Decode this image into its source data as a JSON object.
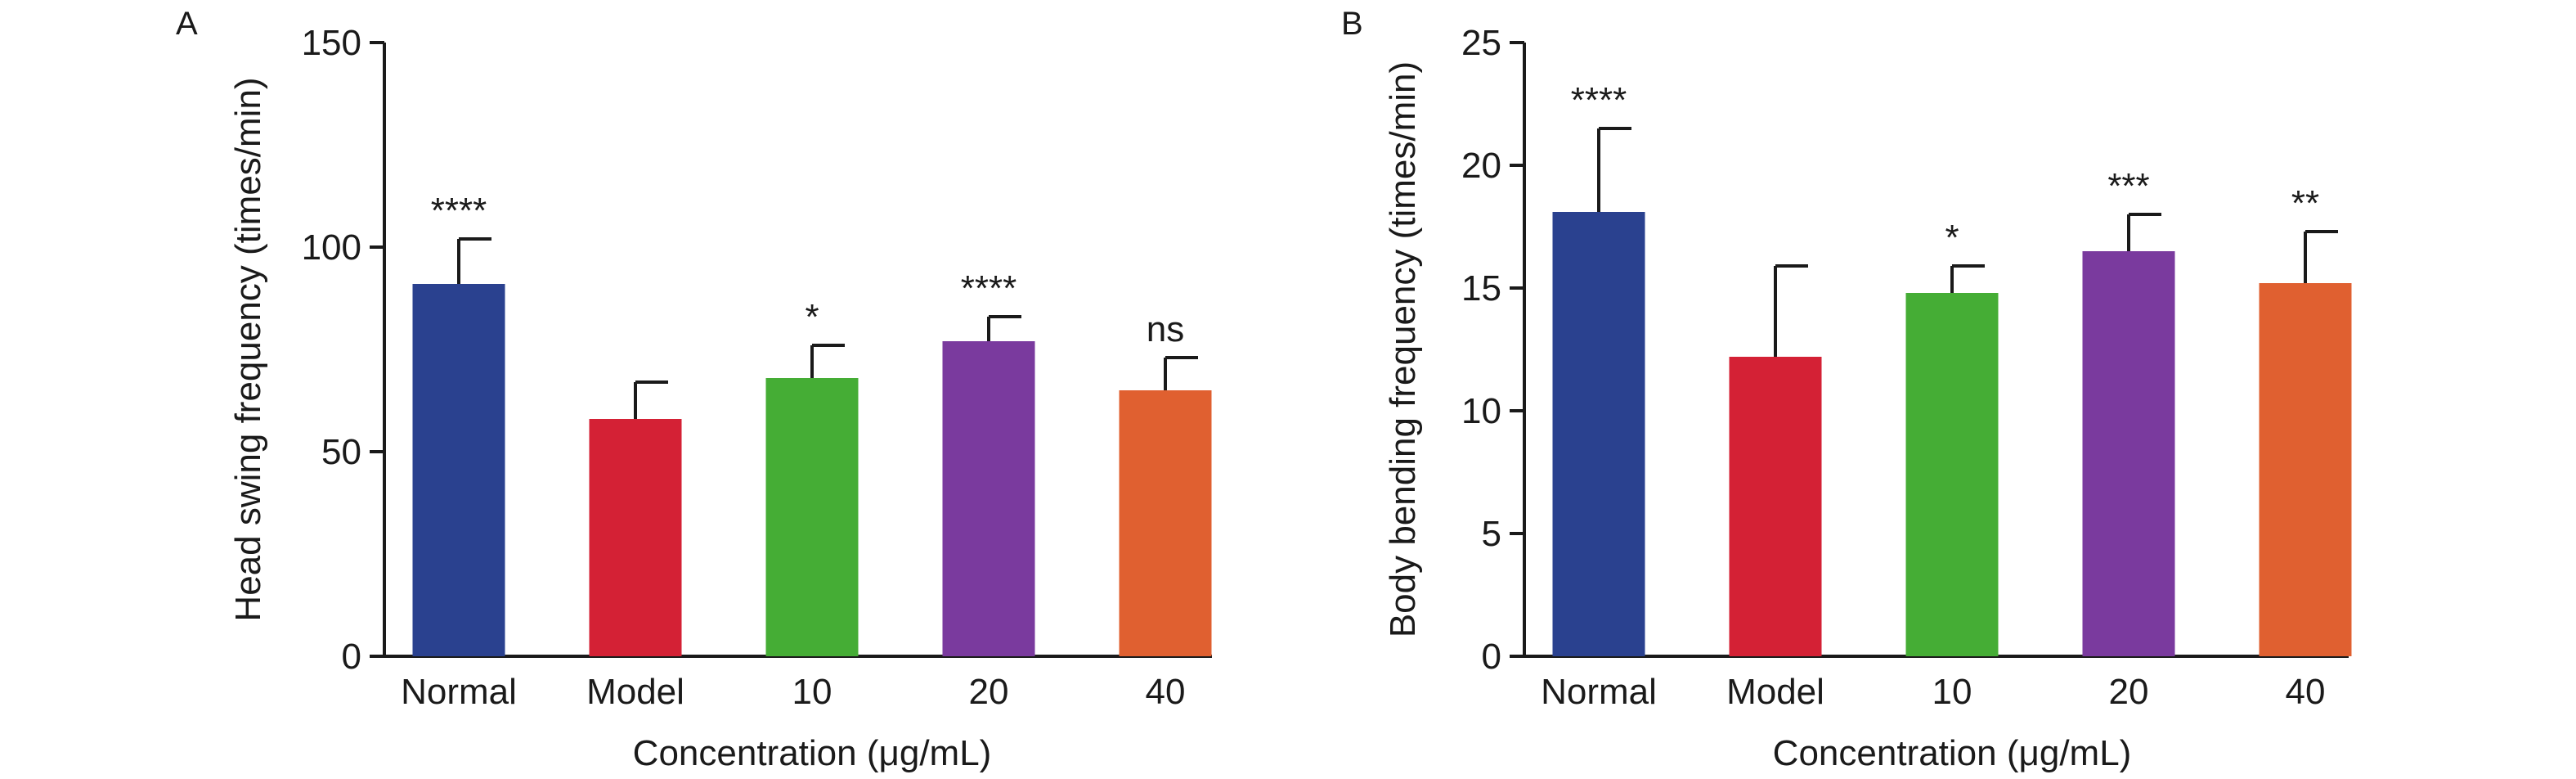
{
  "chart_data": [
    {
      "type": "bar",
      "panel": "A",
      "categories": [
        "Normal",
        "Model",
        "10",
        "20",
        "40"
      ],
      "values": [
        91,
        58,
        68,
        77,
        65
      ],
      "errors": [
        11,
        9,
        8,
        6,
        8
      ],
      "significance": [
        "****",
        "",
        "*",
        "****",
        "ns"
      ],
      "colors": [
        "#2a418f",
        "#d42135",
        "#45ad35",
        "#7a3a9e",
        "#e06030"
      ],
      "xlabel": "Concentration (μg/mL)",
      "ylabel": "Head swing frequency (times/min)",
      "ylim": [
        0,
        150
      ],
      "yticks": [
        "0",
        "50",
        "100",
        "150"
      ],
      "grid": false,
      "legend": "none"
    },
    {
      "type": "bar",
      "panel": "B",
      "categories": [
        "Normal",
        "Model",
        "10",
        "20",
        "40"
      ],
      "values": [
        18.1,
        12.2,
        14.8,
        16.5,
        15.2
      ],
      "errors": [
        3.4,
        3.7,
        1.1,
        1.5,
        2.1
      ],
      "significance": [
        "****",
        "",
        "*",
        "***",
        "**"
      ],
      "colors": [
        "#2a418f",
        "#d42135",
        "#45ad35",
        "#7a3a9e",
        "#e06030"
      ],
      "xlabel": "Concentration (μg/mL)",
      "ylabel": "Body bending frequency (times/min)",
      "ylim": [
        0,
        25
      ],
      "yticks": [
        "0",
        "5",
        "10",
        "15",
        "20",
        "25"
      ],
      "grid": false,
      "legend": "none"
    }
  ]
}
